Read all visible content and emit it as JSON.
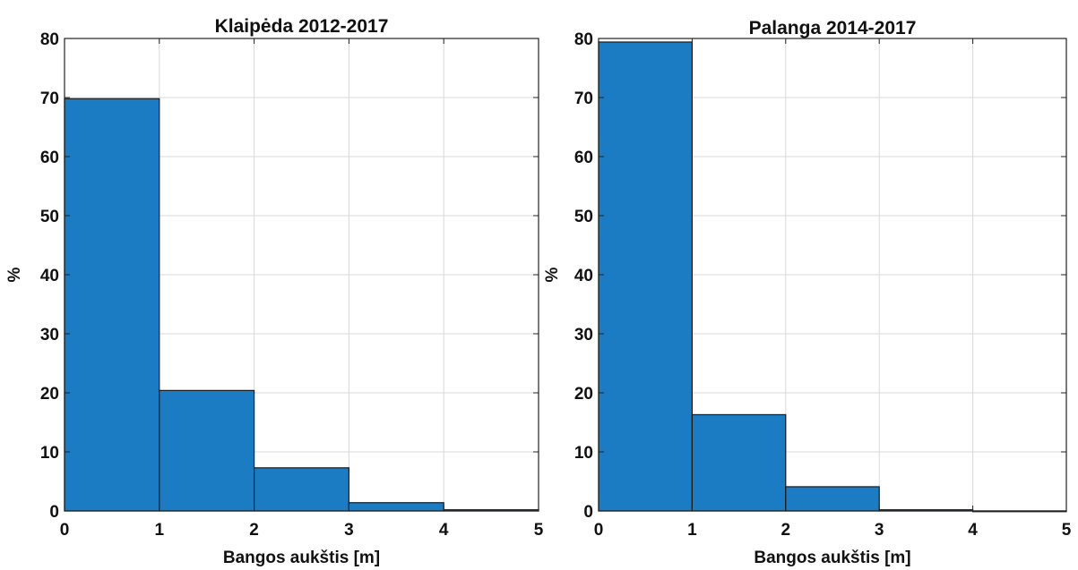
{
  "chart_data": [
    {
      "type": "bar",
      "title": "Klaipėda 2012-2017",
      "xlabel": "Bangos aukštis [m]",
      "ylabel": "%",
      "xlim": [
        0,
        5
      ],
      "ylim": [
        0,
        80
      ],
      "x_ticks": [
        "0",
        "1",
        "2",
        "3",
        "4",
        "5"
      ],
      "y_ticks": [
        "0",
        "10",
        "20",
        "30",
        "40",
        "50",
        "60",
        "70",
        "80"
      ],
      "grid": true,
      "bins": [
        [
          0,
          1
        ],
        [
          1,
          2
        ],
        [
          2,
          3
        ],
        [
          3,
          4
        ],
        [
          4,
          5
        ]
      ],
      "values": [
        69.8,
        20.4,
        7.3,
        1.4,
        0.2
      ],
      "bar_color": "#1b7cc4"
    },
    {
      "type": "bar",
      "title": "Palanga 2014-2017",
      "xlabel": "Bangos aukštis [m]",
      "ylabel": "%",
      "xlim": [
        0,
        5
      ],
      "ylim": [
        0,
        80
      ],
      "x_ticks": [
        "0",
        "1",
        "2",
        "3",
        "4",
        "5"
      ],
      "y_ticks": [
        "0",
        "10",
        "20",
        "30",
        "40",
        "50",
        "60",
        "70",
        "80"
      ],
      "grid": true,
      "bins": [
        [
          0,
          1
        ],
        [
          1,
          2
        ],
        [
          2,
          3
        ],
        [
          3,
          4
        ],
        [
          4,
          5
        ]
      ],
      "values": [
        79.4,
        16.3,
        4.1,
        0.2,
        0.0
      ],
      "bar_color": "#1b7cc4"
    }
  ]
}
